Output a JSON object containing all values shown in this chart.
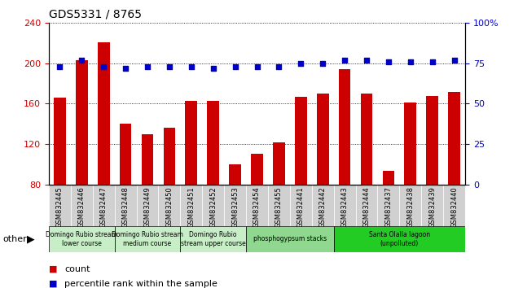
{
  "title": "GDS5331 / 8765",
  "samples": [
    "GSM832445",
    "GSM832446",
    "GSM832447",
    "GSM832448",
    "GSM832449",
    "GSM832450",
    "GSM832451",
    "GSM832452",
    "GSM832453",
    "GSM832454",
    "GSM832455",
    "GSM832441",
    "GSM832442",
    "GSM832443",
    "GSM832444",
    "GSM832437",
    "GSM832438",
    "GSM832439",
    "GSM832440"
  ],
  "counts": [
    166,
    203,
    221,
    140,
    130,
    136,
    163,
    163,
    100,
    110,
    122,
    167,
    170,
    194,
    170,
    93,
    161,
    168,
    172
  ],
  "percentiles": [
    73,
    77,
    73,
    72,
    73,
    73,
    73,
    72,
    73,
    73,
    73,
    75,
    75,
    77,
    77,
    76,
    76,
    76,
    77
  ],
  "bar_color": "#cc0000",
  "dot_color": "#0000cc",
  "ylim_left": [
    80,
    240
  ],
  "ylim_right": [
    0,
    100
  ],
  "yticks_left": [
    80,
    120,
    160,
    200,
    240
  ],
  "yticks_right": [
    0,
    25,
    50,
    75,
    100
  ],
  "groups": [
    {
      "label": "Domingo Rubio stream\nlower course",
      "start": 0,
      "end": 3,
      "color": "#c8eec8"
    },
    {
      "label": "Domingo Rubio stream\nmedium course",
      "start": 3,
      "end": 6,
      "color": "#c8eec8"
    },
    {
      "label": "Domingo Rubio\nstream upper course",
      "start": 6,
      "end": 9,
      "color": "#c8eec8"
    },
    {
      "label": "phosphogypsum stacks",
      "start": 9,
      "end": 13,
      "color": "#90d890"
    },
    {
      "label": "Santa Olalla lagoon\n(unpolluted)",
      "start": 13,
      "end": 19,
      "color": "#22cc22"
    }
  ],
  "ylabel_left_color": "#cc0000",
  "ylabel_right_color": "#0000cc",
  "xtick_bg": "#cccccc",
  "plot_bg": "#ffffff",
  "fig_bg": "#ffffff"
}
